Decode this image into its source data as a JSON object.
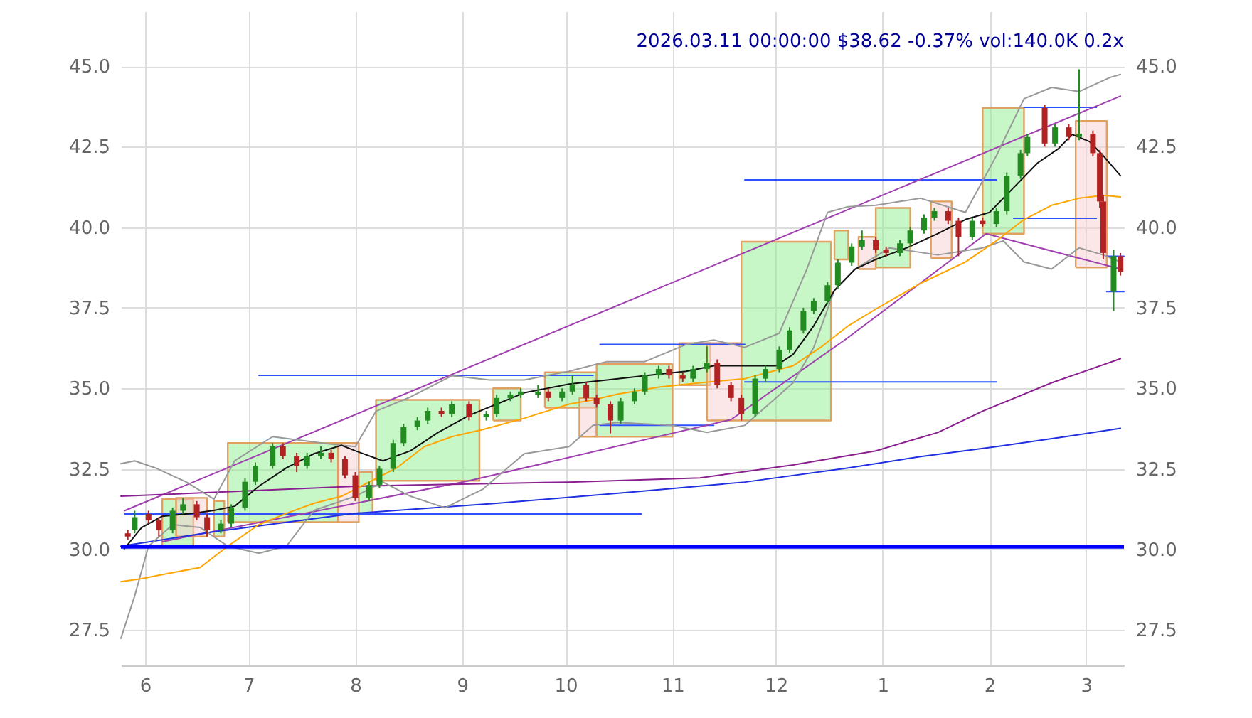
{
  "chart_data": {
    "type": "candlestick",
    "title": "2026.03.11 00:00:00 $38.62 -0.37% vol:140.0K 0.2x",
    "x": [
      "2025-05-27",
      "2025-05-29",
      "2025-06-02",
      "2025-06-05",
      "2025-06-09",
      "2025-06-12",
      "2025-06-16",
      "2025-06-19",
      "2025-06-23",
      "2025-06-26",
      "2025-06-30",
      "2025-07-03",
      "2025-07-08",
      "2025-07-11",
      "2025-07-15",
      "2025-07-18",
      "2025-07-22",
      "2025-07-25",
      "2025-07-29",
      "2025-08-01",
      "2025-08-05",
      "2025-08-08",
      "2025-08-12",
      "2025-08-15",
      "2025-08-19",
      "2025-08-22",
      "2025-08-26",
      "2025-08-29",
      "2025-09-03",
      "2025-09-08",
      "2025-09-11",
      "2025-09-15",
      "2025-09-18",
      "2025-09-23",
      "2025-09-26",
      "2025-09-30",
      "2025-10-03",
      "2025-10-07",
      "2025-10-10",
      "2025-10-14",
      "2025-10-17",
      "2025-10-21",
      "2025-10-24",
      "2025-10-28",
      "2025-10-31",
      "2025-11-04",
      "2025-11-07",
      "2025-11-11",
      "2025-11-14",
      "2025-11-18",
      "2025-11-21",
      "2025-11-25",
      "2025-11-28",
      "2025-12-02",
      "2025-12-05",
      "2025-12-09",
      "2025-12-12",
      "2025-12-16",
      "2025-12-19",
      "2025-12-23",
      "2025-12-26",
      "2025-12-30",
      "2026-01-02",
      "2026-01-06",
      "2026-01-09",
      "2026-01-13",
      "2026-01-16",
      "2026-01-20",
      "2026-01-23",
      "2026-01-27",
      "2026-01-30",
      "2026-02-03",
      "2026-02-06",
      "2026-02-10",
      "2026-02-12",
      "2026-02-17",
      "2026-02-20",
      "2026-02-24",
      "2026-02-27",
      "2026-03-03",
      "2026-03-05",
      "2026-03-06",
      "2026-03-09",
      "2026-03-11"
    ],
    "ohlc": [
      [
        30.5,
        30.6,
        30.3,
        30.4
      ],
      [
        30.6,
        31.2,
        30.5,
        31.0
      ],
      [
        31.1,
        31.2,
        30.8,
        30.9
      ],
      [
        30.9,
        31.0,
        30.4,
        30.6
      ],
      [
        30.6,
        31.3,
        30.5,
        31.2
      ],
      [
        31.2,
        31.6,
        31.1,
        31.4
      ],
      [
        31.4,
        31.5,
        30.9,
        31.0
      ],
      [
        31.0,
        31.1,
        30.4,
        30.6
      ],
      [
        30.6,
        30.9,
        30.5,
        30.8
      ],
      [
        30.8,
        31.4,
        30.7,
        31.3
      ],
      [
        31.3,
        32.2,
        31.2,
        32.1
      ],
      [
        32.1,
        32.7,
        32.0,
        32.6
      ],
      [
        32.6,
        33.3,
        32.5,
        33.2
      ],
      [
        33.2,
        33.3,
        32.8,
        32.9
      ],
      [
        32.9,
        33.0,
        32.4,
        32.6
      ],
      [
        32.6,
        33.0,
        32.5,
        32.9
      ],
      [
        32.9,
        33.2,
        32.8,
        33.0
      ],
      [
        33.0,
        33.1,
        32.7,
        32.8
      ],
      [
        32.8,
        32.9,
        32.2,
        32.3
      ],
      [
        32.3,
        32.4,
        31.5,
        31.6
      ],
      [
        31.6,
        32.1,
        31.5,
        32.0
      ],
      [
        32.0,
        32.6,
        31.9,
        32.5
      ],
      [
        32.5,
        33.4,
        32.4,
        33.3
      ],
      [
        33.3,
        33.9,
        33.2,
        33.8
      ],
      [
        33.8,
        34.1,
        33.7,
        34.0
      ],
      [
        34.0,
        34.4,
        33.9,
        34.3
      ],
      [
        34.3,
        34.4,
        34.1,
        34.2
      ],
      [
        34.2,
        34.6,
        34.1,
        34.5
      ],
      [
        34.5,
        34.6,
        34.0,
        34.1
      ],
      [
        34.1,
        34.3,
        34.0,
        34.2
      ],
      [
        34.2,
        34.8,
        34.1,
        34.7
      ],
      [
        34.7,
        34.9,
        34.6,
        34.8
      ],
      [
        34.8,
        35.0,
        34.7,
        34.9
      ],
      [
        34.8,
        35.1,
        34.7,
        34.9
      ],
      [
        34.9,
        35.0,
        34.6,
        34.7
      ],
      [
        34.7,
        35.0,
        34.6,
        34.9
      ],
      [
        34.9,
        35.4,
        34.8,
        35.1
      ],
      [
        35.1,
        35.2,
        34.6,
        34.7
      ],
      [
        34.7,
        34.8,
        34.4,
        34.5
      ],
      [
        34.5,
        34.6,
        33.6,
        34.0
      ],
      [
        34.0,
        34.7,
        33.9,
        34.6
      ],
      [
        34.6,
        35.0,
        34.5,
        34.9
      ],
      [
        34.9,
        35.5,
        34.8,
        35.4
      ],
      [
        35.4,
        35.7,
        35.3,
        35.6
      ],
      [
        35.6,
        35.7,
        35.3,
        35.4
      ],
      [
        35.4,
        35.5,
        35.2,
        35.3
      ],
      [
        35.3,
        35.7,
        35.2,
        35.6
      ],
      [
        35.6,
        36.3,
        35.5,
        35.8
      ],
      [
        35.8,
        35.9,
        35.0,
        35.1
      ],
      [
        35.1,
        35.2,
        34.6,
        34.7
      ],
      [
        34.7,
        34.8,
        34.0,
        34.2
      ],
      [
        34.2,
        35.4,
        34.1,
        35.3
      ],
      [
        35.3,
        35.7,
        35.2,
        35.6
      ],
      [
        35.6,
        36.3,
        35.5,
        36.2
      ],
      [
        36.2,
        36.9,
        36.1,
        36.8
      ],
      [
        36.8,
        37.5,
        36.7,
        37.4
      ],
      [
        37.4,
        37.8,
        37.3,
        37.7
      ],
      [
        37.7,
        38.3,
        37.6,
        38.2
      ],
      [
        38.2,
        39.0,
        38.1,
        38.9
      ],
      [
        38.9,
        39.5,
        38.8,
        39.4
      ],
      [
        39.4,
        39.9,
        39.3,
        39.6
      ],
      [
        39.6,
        39.7,
        39.2,
        39.3
      ],
      [
        39.3,
        39.4,
        39.1,
        39.2
      ],
      [
        39.2,
        39.6,
        39.1,
        39.5
      ],
      [
        39.5,
        40.0,
        39.4,
        39.9
      ],
      [
        39.9,
        40.4,
        39.8,
        40.3
      ],
      [
        40.3,
        40.6,
        40.2,
        40.5
      ],
      [
        40.5,
        40.6,
        40.1,
        40.2
      ],
      [
        40.2,
        40.3,
        39.1,
        39.7
      ],
      [
        39.7,
        40.3,
        39.6,
        40.2
      ],
      [
        40.2,
        40.3,
        40.0,
        40.1
      ],
      [
        40.1,
        40.6,
        40.0,
        40.5
      ],
      [
        40.5,
        41.7,
        40.4,
        41.6
      ],
      [
        41.6,
        42.4,
        41.5,
        42.3
      ],
      [
        42.3,
        42.9,
        42.2,
        42.8
      ],
      [
        43.7,
        43.8,
        42.5,
        42.6
      ],
      [
        42.6,
        43.2,
        42.5,
        43.1
      ],
      [
        43.1,
        43.2,
        42.7,
        42.8
      ],
      [
        42.8,
        44.9,
        42.7,
        42.9
      ],
      [
        42.9,
        43.0,
        42.2,
        42.3
      ],
      [
        42.3,
        42.4,
        40.6,
        40.8
      ],
      [
        40.8,
        41.0,
        39.0,
        39.2
      ],
      [
        38.0,
        39.3,
        37.4,
        39.1
      ],
      [
        39.1,
        39.2,
        38.5,
        38.62
      ]
    ],
    "colors": [
      "#b22222",
      "#228b22",
      "#b22222",
      "#b22222",
      "#228b22",
      "#228b22",
      "#b22222",
      "#b22222",
      "#228b22",
      "#228b22",
      "#228b22",
      "#228b22",
      "#228b22",
      "#b22222",
      "#b22222",
      "#228b22",
      "#228b22",
      "#b22222",
      "#b22222",
      "#b22222",
      "#228b22",
      "#228b22",
      "#228b22",
      "#228b22",
      "#228b22",
      "#228b22",
      "#b22222",
      "#228b22",
      "#b22222",
      "#228b22",
      "#228b22",
      "#228b22",
      "#228b22",
      "#228b22",
      "#b22222",
      "#228b22",
      "#228b22",
      "#b22222",
      "#b22222",
      "#b22222",
      "#228b22",
      "#228b22",
      "#228b22",
      "#228b22",
      "#b22222",
      "#b22222",
      "#228b22",
      "#228b22",
      "#b22222",
      "#b22222",
      "#b22222",
      "#228b22",
      "#228b22",
      "#228b22",
      "#228b22",
      "#228b22",
      "#228b22",
      "#228b22",
      "#228b22",
      "#228b22",
      "#228b22",
      "#b22222",
      "#b22222",
      "#228b22",
      "#228b22",
      "#228b22",
      "#228b22",
      "#b22222",
      "#b22222",
      "#228b22",
      "#b22222",
      "#228b22",
      "#228b22",
      "#228b22",
      "#228b22",
      "#b22222",
      "#228b22",
      "#b22222",
      "#228b22",
      "#b22222",
      "#b22222",
      "#b22222",
      "#228b22",
      "#b22222"
    ],
    "series": [
      {
        "type": "area",
        "color": "#90ee90",
        "x": [
          "2025-06-06",
          "2025-06-06",
          "2025-06-15",
          "2025-06-15",
          "2025-06-06"
        ],
        "values": [
          30.06,
          31.56,
          31.56,
          30.06,
          30.06
        ]
      },
      {
        "type": "area",
        "color": "#f8d0d0",
        "x": [
          "2025-06-10",
          "2025-06-10",
          "2025-06-19",
          "2025-06-19",
          "2025-06-10"
        ],
        "values": [
          30.4,
          31.6,
          31.6,
          30.4,
          30.4
        ]
      },
      {
        "type": "area",
        "color": "#90ee90",
        "x": [
          "2025-06-21",
          "2025-06-21",
          "2025-06-24",
          "2025-06-24",
          "2025-06-21"
        ],
        "values": [
          30.4,
          31.5,
          31.5,
          30.4,
          30.4
        ]
      },
      {
        "type": "area",
        "color": "#90ee90",
        "x": [
          "2025-06-25",
          "2025-06-25",
          "2025-07-27",
          "2025-07-27",
          "2025-06-25"
        ],
        "values": [
          30.85,
          33.3,
          33.3,
          30.85,
          30.85
        ]
      },
      {
        "type": "area",
        "color": "#f8d0d0",
        "x": [
          "2025-07-27",
          "2025-07-27",
          "2025-08-02",
          "2025-08-02",
          "2025-07-27"
        ],
        "values": [
          30.85,
          33.3,
          33.3,
          30.85,
          30.85
        ]
      },
      {
        "type": "area",
        "color": "#90ee90",
        "x": [
          "2025-08-02",
          "2025-08-02",
          "2025-08-06",
          "2025-08-06",
          "2025-08-02"
        ],
        "values": [
          31.1,
          32.4,
          32.4,
          31.1,
          31.1
        ]
      },
      {
        "type": "area",
        "color": "#90ee90",
        "x": [
          "2025-08-07",
          "2025-08-07",
          "2025-09-06",
          "2025-09-06",
          "2025-08-07"
        ],
        "values": [
          32.13,
          34.64,
          34.64,
          32.13,
          32.13
        ]
      },
      {
        "type": "area",
        "color": "#90ee90",
        "x": [
          "2025-09-10",
          "2025-09-10",
          "2025-09-18",
          "2025-09-18",
          "2025-09-10"
        ],
        "values": [
          34.0,
          35.0,
          35.0,
          34.0,
          34.0
        ]
      },
      {
        "type": "area",
        "color": "#90ee90",
        "x": [
          "2025-09-25",
          "2025-09-25",
          "2025-10-10",
          "2025-10-10",
          "2025-09-25"
        ],
        "values": [
          34.4,
          35.5,
          35.5,
          34.4,
          34.4
        ]
      },
      {
        "type": "area",
        "color": "#f8d0d0",
        "x": [
          "2025-10-05",
          "2025-10-05",
          "2025-10-10",
          "2025-10-10",
          "2025-10-05"
        ],
        "values": [
          33.5,
          34.7,
          34.7,
          33.5,
          33.5
        ]
      },
      {
        "type": "area",
        "color": "#90ee90",
        "x": [
          "2025-10-10",
          "2025-10-10",
          "2025-11-01",
          "2025-11-01",
          "2025-10-10"
        ],
        "values": [
          33.5,
          35.75,
          35.75,
          33.5,
          33.5
        ]
      },
      {
        "type": "area",
        "color": "#90ee90",
        "x": [
          "2025-11-03",
          "2025-11-03",
          "2025-11-12",
          "2025-11-12",
          "2025-11-03"
        ],
        "values": [
          35.1,
          36.4,
          36.4,
          35.1,
          35.1
        ]
      },
      {
        "type": "area",
        "color": "#f8d0d0",
        "x": [
          "2025-11-11",
          "2025-11-11",
          "2025-11-21",
          "2025-11-21",
          "2025-11-11"
        ],
        "values": [
          34.0,
          36.4,
          36.4,
          34.0,
          34.0
        ]
      },
      {
        "type": "area",
        "color": "#90ee90",
        "x": [
          "2025-11-21",
          "2025-11-21",
          "2025-12-17",
          "2025-12-17",
          "2025-11-21"
        ],
        "values": [
          34.0,
          39.55,
          39.55,
          34.0,
          34.0
        ]
      },
      {
        "type": "area",
        "color": "#90ee90",
        "x": [
          "2025-12-18",
          "2025-12-18",
          "2025-12-22",
          "2025-12-22",
          "2025-12-18"
        ],
        "values": [
          39.0,
          39.9,
          39.9,
          39.0,
          39.0
        ]
      },
      {
        "type": "area",
        "color": "#f8d0d0",
        "x": [
          "2025-12-25",
          "2025-12-25",
          "2025-12-30",
          "2025-12-30",
          "2025-12-25"
        ],
        "values": [
          38.7,
          39.7,
          39.7,
          38.7,
          38.7
        ]
      },
      {
        "type": "area",
        "color": "#90ee90",
        "x": [
          "2025-12-30",
          "2025-12-30",
          "2026-01-09",
          "2026-01-09",
          "2025-12-30"
        ],
        "values": [
          38.75,
          40.6,
          40.6,
          38.75,
          38.75
        ]
      },
      {
        "type": "area",
        "color": "#f8d0d0",
        "x": [
          "2026-01-15",
          "2026-01-15",
          "2026-01-21",
          "2026-01-21",
          "2026-01-15"
        ],
        "values": [
          39.05,
          40.8,
          40.8,
          39.05,
          39.05
        ]
      },
      {
        "type": "area",
        "color": "#90ee90",
        "x": [
          "2026-01-30",
          "2026-01-30",
          "2026-02-11",
          "2026-02-11",
          "2026-01-30"
        ],
        "values": [
          39.8,
          43.7,
          43.7,
          39.8,
          39.8
        ]
      },
      {
        "type": "area",
        "color": "#f8d0d0",
        "x": [
          "2026-02-26",
          "2026-02-26",
          "2026-03-07",
          "2026-03-07",
          "2026-02-26"
        ],
        "values": [
          38.75,
          43.3,
          43.3,
          38.75,
          38.75
        ]
      },
      {
        "type": "line",
        "color": "#3050ff",
        "x": [
          "2025-05-26",
          "2025-10-23"
        ],
        "values": [
          31.1,
          31.1
        ]
      },
      {
        "type": "line",
        "color": "#3050ff",
        "x": [
          "2025-07-04",
          "2025-10-09"
        ],
        "values": [
          35.4,
          35.4
        ]
      },
      {
        "type": "line",
        "color": "#3050ff",
        "x": [
          "2025-10-11",
          "2025-11-22"
        ],
        "values": [
          36.36,
          36.36
        ]
      },
      {
        "type": "line",
        "color": "#3050ff",
        "x": [
          "2025-10-11",
          "2025-11-13"
        ],
        "values": [
          33.85,
          33.85
        ]
      },
      {
        "type": "line",
        "color": "#3050ff",
        "x": [
          "2025-11-22",
          "2026-02-03"
        ],
        "values": [
          35.2,
          35.2
        ]
      },
      {
        "type": "line",
        "color": "#3050ff",
        "x": [
          "2025-11-22",
          "2026-02-03"
        ],
        "values": [
          41.47,
          41.47
        ]
      },
      {
        "type": "line",
        "color": "#3050ff",
        "x": [
          "2026-02-11",
          "2026-03-04"
        ],
        "values": [
          43.72,
          43.72
        ]
      },
      {
        "type": "line",
        "color": "#3050ff",
        "x": [
          "2026-02-08",
          "2026-03-04"
        ],
        "values": [
          40.28,
          40.28
        ]
      },
      {
        "type": "line",
        "color": "#3050ff",
        "x": [
          "2026-03-07",
          "2026-03-12"
        ],
        "values": [
          39.1,
          39.1
        ]
      },
      {
        "type": "line",
        "color": "#3050ff",
        "x": [
          "2026-03-07",
          "2026-03-12"
        ],
        "values": [
          38.0,
          38.0
        ]
      },
      {
        "type": "line",
        "color": "#a040b0",
        "x": [
          "2025-05-26",
          "2026-03-11"
        ],
        "values": [
          31.2,
          44.07
        ]
      },
      {
        "type": "line",
        "color": "#a040b0",
        "x": [
          "2025-06-06",
          "2025-09-03",
          "2025-11-18",
          "2025-12-21",
          "2026-01-31",
          "2026-03-11"
        ],
        "values": [
          30.24,
          32.13,
          34.03,
          36.5,
          39.8,
          38.7
        ]
      },
      {
        "type": "line",
        "color": "#8a2090",
        "x": [
          "2025-05-25",
          "2025-08-01",
          "2025-10-02",
          "2025-11-09",
          "2025-12-06",
          "2025-12-30",
          "2026-01-17",
          "2026-01-30",
          "2026-02-19",
          "2026-03-11"
        ],
        "values": [
          31.65,
          31.96,
          32.09,
          32.22,
          32.62,
          33.06,
          33.63,
          34.29,
          35.17,
          35.92
        ]
      },
      {
        "type": "line",
        "color": "#2030e0",
        "x": [
          "2025-05-25",
          "2025-06-21",
          "2025-08-01",
          "2025-09-11",
          "2025-10-20",
          "2025-11-22",
          "2025-12-22",
          "2026-01-12",
          "2026-02-03",
          "2026-02-23",
          "2026-03-11"
        ],
        "values": [
          30.1,
          30.55,
          31.12,
          31.43,
          31.78,
          32.09,
          32.53,
          32.88,
          33.19,
          33.5,
          33.76
        ]
      },
      {
        "type": "line",
        "color": "#999999",
        "x": [
          "2025-05-25",
          "2025-05-29",
          "2025-06-04",
          "2025-06-13",
          "2025-06-21",
          "2025-06-27",
          "2025-07-08",
          "2025-07-24",
          "2025-08-01",
          "2025-08-07",
          "2025-08-17",
          "2025-08-29",
          "2025-09-09",
          "2025-09-19",
          "2025-10-02",
          "2025-10-13",
          "2025-10-24",
          "2025-11-05",
          "2025-11-13",
          "2025-11-22",
          "2025-12-02",
          "2025-12-10",
          "2025-12-16",
          "2025-12-22",
          "2025-12-30",
          "2026-01-12",
          "2026-01-25",
          "2026-02-03",
          "2026-02-11",
          "2026-02-19",
          "2026-02-27",
          "2026-03-08",
          "2026-03-11"
        ],
        "values": [
          32.66,
          32.75,
          32.53,
          32.09,
          31.56,
          32.75,
          33.5,
          33.28,
          33.19,
          34.29,
          34.73,
          35.39,
          35.26,
          35.26,
          35.53,
          35.83,
          35.83,
          36.36,
          36.5,
          36.27,
          36.71,
          38.7,
          40.46,
          40.64,
          40.68,
          40.9,
          40.46,
          42.22,
          43.99,
          44.34,
          44.21,
          44.65,
          44.74
        ]
      },
      {
        "type": "line",
        "color": "#999999",
        "x": [
          "2025-05-25",
          "2025-05-29",
          "2025-06-02",
          "2025-06-09",
          "2025-06-17",
          "2025-06-25",
          "2025-07-04",
          "2025-07-12",
          "2025-07-20",
          "2025-08-01",
          "2025-08-09",
          "2025-08-17",
          "2025-08-27",
          "2025-09-07",
          "2025-09-19",
          "2025-10-02",
          "2025-10-09",
          "2025-10-16",
          "2025-11-01",
          "2025-11-11",
          "2025-11-22",
          "2025-11-29",
          "2025-12-06",
          "2025-12-12",
          "2025-12-18",
          "2025-12-24",
          "2026-01-03",
          "2026-01-17",
          "2026-01-30",
          "2026-02-05",
          "2026-02-11",
          "2026-02-19",
          "2026-02-27",
          "2026-03-06",
          "2026-03-11"
        ],
        "values": [
          27.24,
          28.56,
          30.1,
          30.77,
          30.68,
          30.1,
          29.88,
          30.1,
          31.21,
          31.65,
          32.09,
          31.65,
          31.29,
          31.87,
          32.97,
          33.19,
          33.85,
          33.94,
          33.85,
          33.63,
          33.85,
          34.51,
          35.17,
          36.27,
          38.04,
          38.7,
          39.36,
          39.14,
          39.36,
          39.58,
          38.92,
          38.7,
          39.36,
          39.14,
          38.92
        ]
      },
      {
        "type": "line",
        "color": "#ffa500",
        "x": [
          "2025-05-25",
          "2025-05-31",
          "2025-06-06",
          "2025-06-17",
          "2025-06-25",
          "2025-07-04",
          "2025-07-12",
          "2025-07-20",
          "2025-07-28",
          "2025-08-05",
          "2025-08-13",
          "2025-08-21",
          "2025-08-29",
          "2025-09-07",
          "2025-09-19",
          "2025-10-02",
          "2025-10-09",
          "2025-10-16",
          "2025-10-28",
          "2025-11-09",
          "2025-11-22",
          "2025-12-06",
          "2025-12-14",
          "2025-12-22",
          "2025-12-30",
          "2026-01-12",
          "2026-01-25",
          "2026-02-03",
          "2026-02-11",
          "2026-02-19",
          "2026-02-27",
          "2026-03-06",
          "2026-03-11"
        ],
        "values": [
          29.0,
          29.09,
          29.22,
          29.44,
          30.1,
          30.77,
          31.12,
          31.43,
          31.65,
          32.09,
          32.53,
          33.19,
          33.5,
          33.72,
          34.07,
          34.51,
          34.64,
          34.82,
          35.04,
          35.17,
          35.3,
          35.7,
          36.27,
          36.94,
          37.46,
          38.26,
          38.92,
          39.58,
          40.24,
          40.68,
          40.9,
          40.99,
          40.94
        ]
      },
      {
        "type": "line",
        "color": "#111111",
        "x": [
          "2025-05-26",
          "2025-05-31",
          "2025-06-06",
          "2025-06-15",
          "2025-06-21",
          "2025-06-27",
          "2025-07-04",
          "2025-07-12",
          "2025-07-20",
          "2025-07-28",
          "2025-08-01",
          "2025-08-09",
          "2025-08-17",
          "2025-08-25",
          "2025-09-03",
          "2025-09-11",
          "2025-09-19",
          "2025-10-02",
          "2025-10-13",
          "2025-10-24",
          "2025-11-05",
          "2025-11-13",
          "2025-12-01",
          "2025-12-06",
          "2025-12-12",
          "2025-12-18",
          "2025-12-24",
          "2025-12-30",
          "2026-01-08",
          "2026-01-17",
          "2026-01-25",
          "2026-02-01",
          "2026-02-07",
          "2026-02-15",
          "2026-02-21",
          "2026-02-25",
          "2026-03-02",
          "2026-03-06",
          "2026-03-11"
        ],
        "values": [
          30.02,
          30.68,
          31.03,
          31.12,
          31.21,
          31.34,
          31.96,
          32.53,
          32.97,
          33.23,
          33.06,
          32.75,
          33.06,
          33.63,
          34.16,
          34.51,
          34.86,
          35.13,
          35.26,
          35.39,
          35.53,
          35.7,
          35.7,
          36.05,
          36.94,
          38.04,
          38.7,
          39.0,
          39.36,
          39.8,
          40.24,
          40.46,
          41.12,
          42.0,
          42.44,
          42.88,
          42.66,
          42.22,
          41.6
        ]
      }
    ],
    "xlim": [
      "2025-05-25",
      "2026-03-12"
    ],
    "ref_lines": [
      {
        "axis": "y",
        "value": 30.08,
        "color": "#0000ff"
      }
    ],
    "xticks": [
      {
        "value": "2025-06-01",
        "label": "6"
      },
      {
        "value": "2025-07-01",
        "label": "7"
      },
      {
        "value": "2025-08-01",
        "label": "8"
      },
      {
        "value": "2025-09-01",
        "label": "9"
      },
      {
        "value": "2025-10-01",
        "label": "10"
      },
      {
        "value": "2025-11-01",
        "label": "11"
      },
      {
        "value": "2025-12-01",
        "label": "12"
      },
      {
        "value": "2026-01-01",
        "label": "1"
      },
      {
        "value": "2026-02-01",
        "label": "2"
      },
      {
        "value": "2026-03-01",
        "label": "3"
      }
    ],
    "ylim": [
      26.4,
      46.7
    ],
    "yticks": [
      {
        "value": 27.5,
        "label": "27.5"
      },
      {
        "value": 30,
        "label": "30.0"
      },
      {
        "value": 32.5,
        "label": "32.5"
      },
      {
        "value": 35,
        "label": "35.0"
      },
      {
        "value": 37.5,
        "label": "37.5"
      },
      {
        "value": 40,
        "label": "40.0"
      },
      {
        "value": 42.5,
        "label": "42.5"
      },
      {
        "value": 45,
        "label": "45.0"
      }
    ],
    "y2lim": [
      26.4,
      46.7
    ],
    "y2ticks": [
      {
        "value": 27.5,
        "label": "27.5"
      },
      {
        "value": 30,
        "label": "30.0"
      },
      {
        "value": 32.5,
        "label": "32.5"
      },
      {
        "value": 35,
        "label": "35.0"
      },
      {
        "value": 37.5,
        "label": "37.5"
      },
      {
        "value": 40,
        "label": "40.0"
      },
      {
        "value": 42.5,
        "label": "42.5"
      },
      {
        "value": 45,
        "label": "45.0"
      }
    ],
    "grid": true
  }
}
